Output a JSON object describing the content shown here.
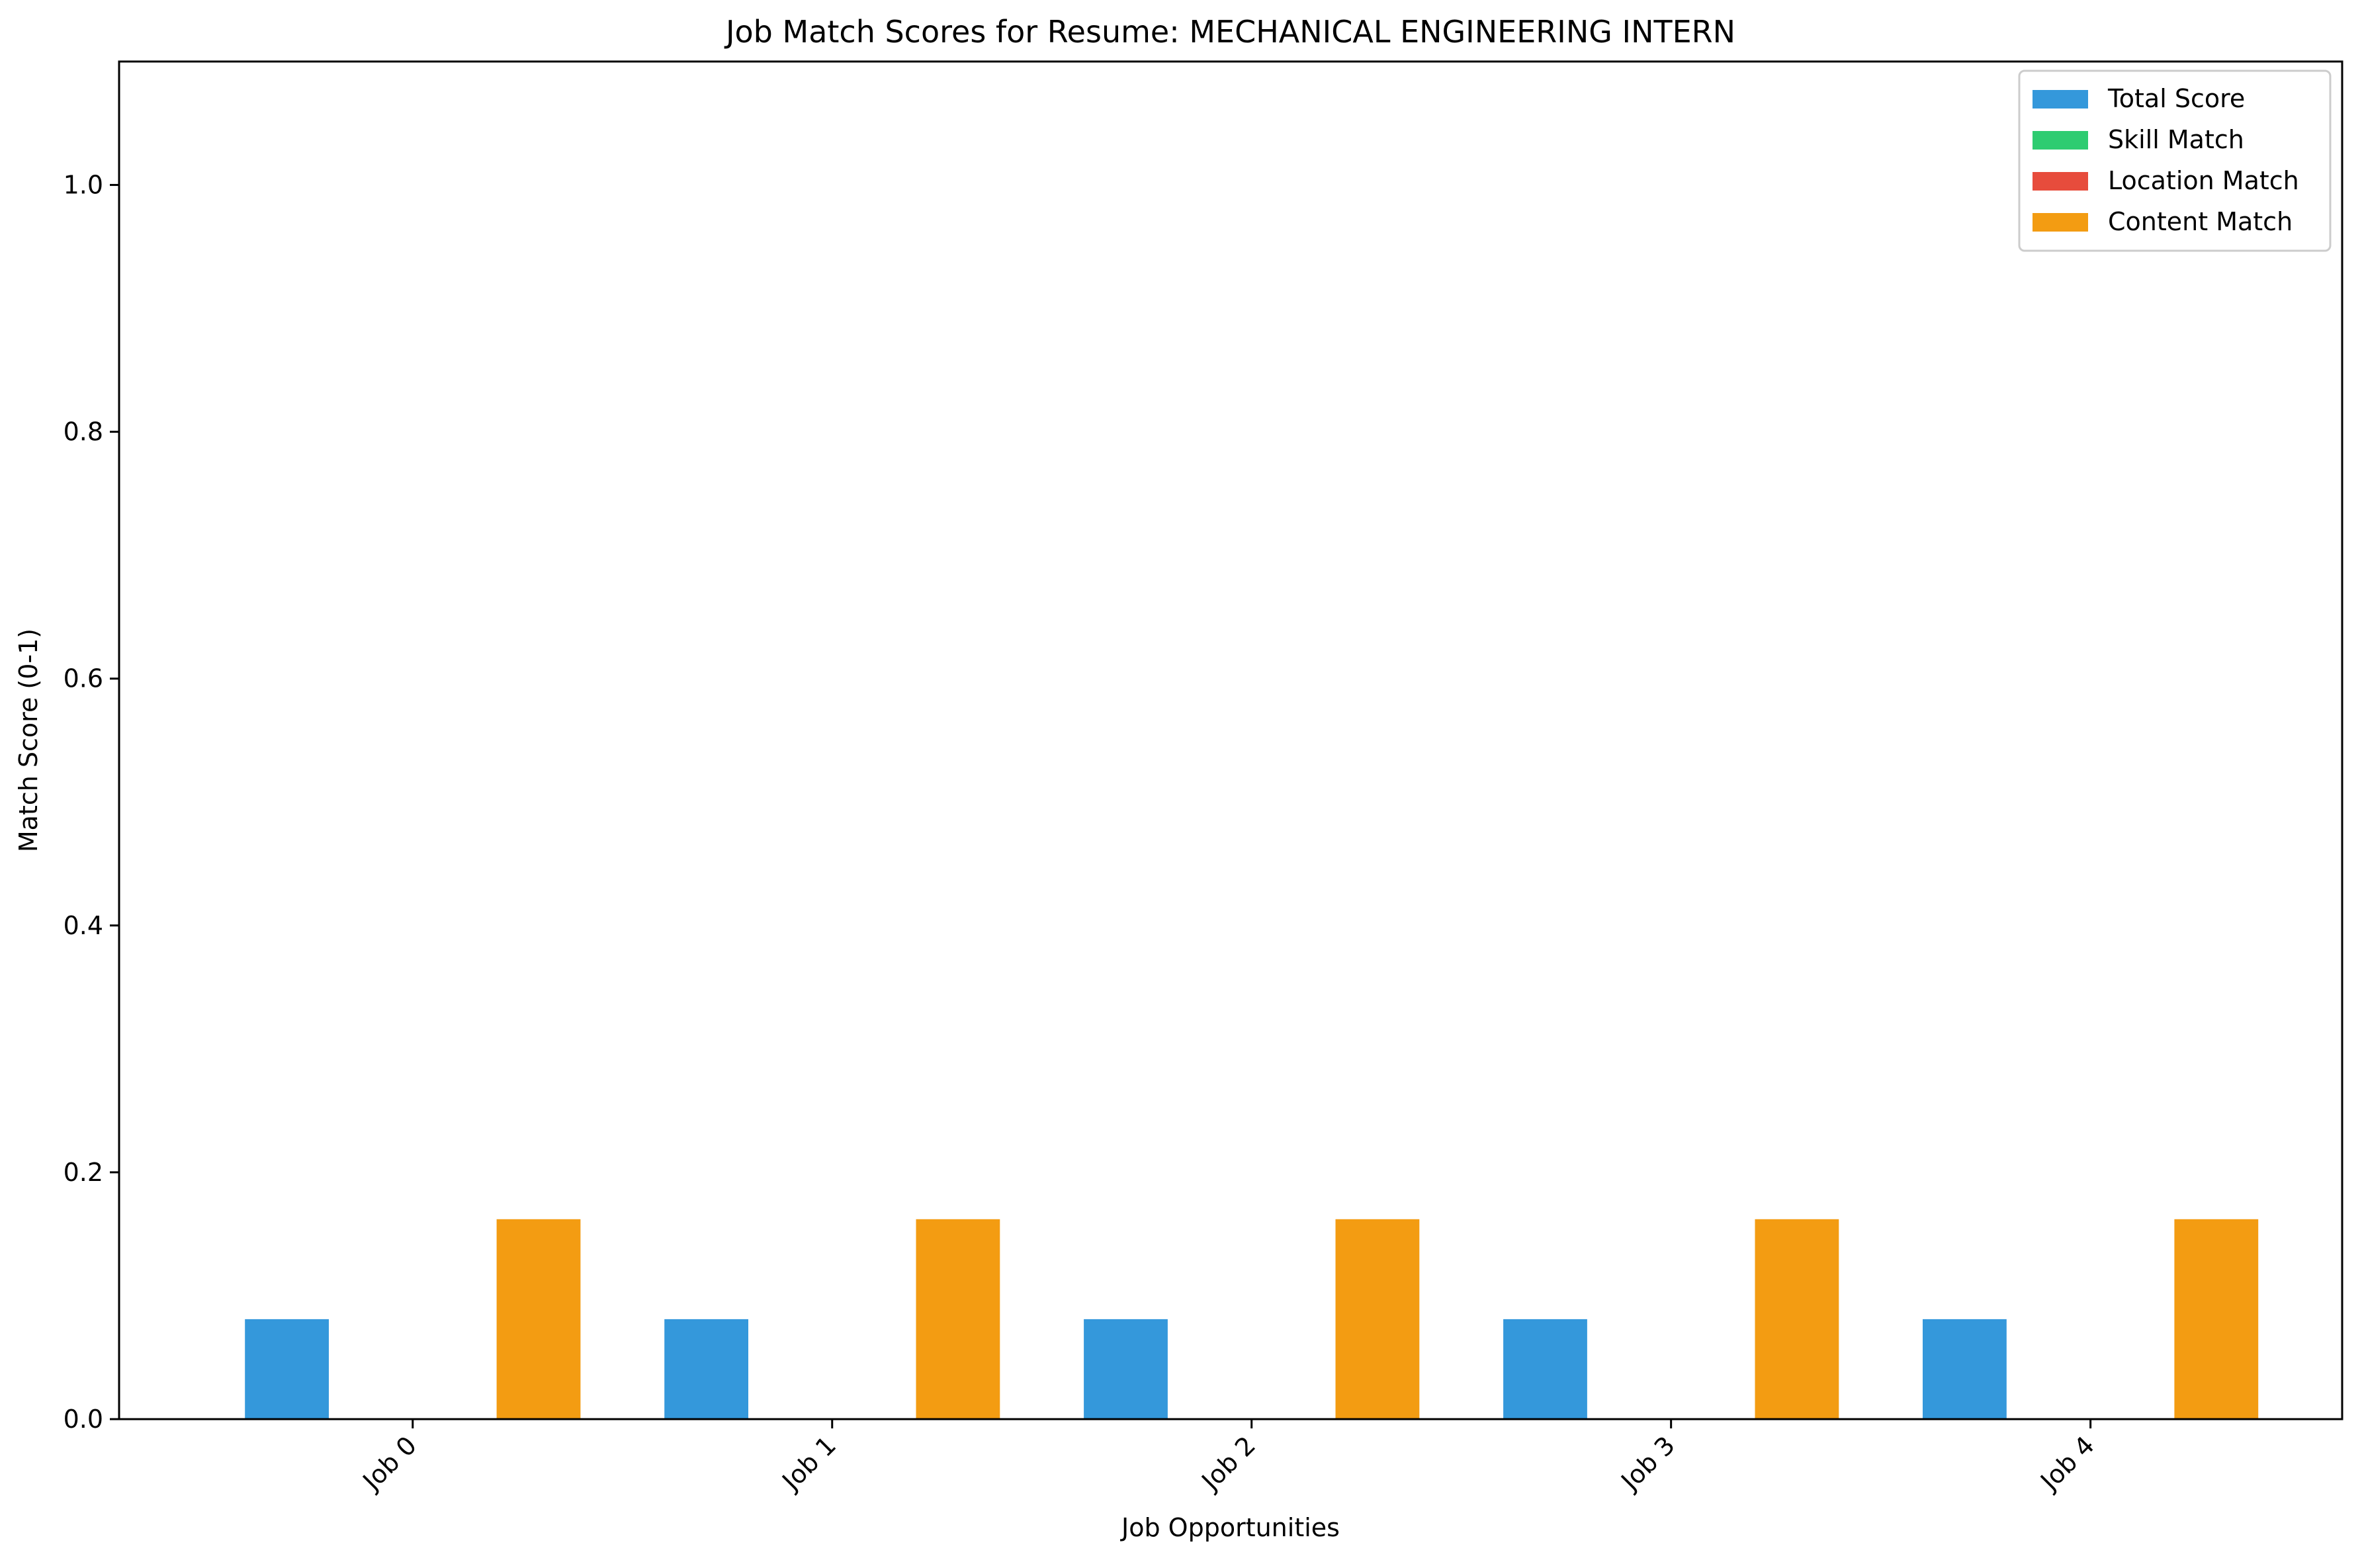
{
  "chart_data": {
    "type": "bar",
    "title": "Job Match Scores for Resume: MECHANICAL ENGINEERING INTERN",
    "xlabel": "Job Opportunities",
    "ylabel": "Match Score (0-1)",
    "ylim": [
      0,
      1.1
    ],
    "yticks": [
      0.0,
      0.2,
      0.4,
      0.6,
      0.8,
      1.0
    ],
    "ytick_labels": [
      "0.0",
      "0.2",
      "0.4",
      "0.6",
      "0.8",
      "1.0"
    ],
    "categories": [
      "Job 0",
      "Job 1",
      "Job 2",
      "Job 3",
      "Job 4"
    ],
    "grid": false,
    "legend_position": "top-right",
    "series": [
      {
        "name": "Total Score",
        "color": "#3498db",
        "values": [
          0.081,
          0.081,
          0.081,
          0.081,
          0.081
        ]
      },
      {
        "name": "Skill Match",
        "color": "#2ecc71",
        "values": [
          0,
          0,
          0,
          0,
          0
        ]
      },
      {
        "name": "Location Match",
        "color": "#e74c3c",
        "values": [
          0,
          0,
          0,
          0,
          0
        ]
      },
      {
        "name": "Content Match",
        "color": "#f39c12",
        "values": [
          0.162,
          0.162,
          0.162,
          0.162,
          0.162
        ]
      }
    ]
  }
}
